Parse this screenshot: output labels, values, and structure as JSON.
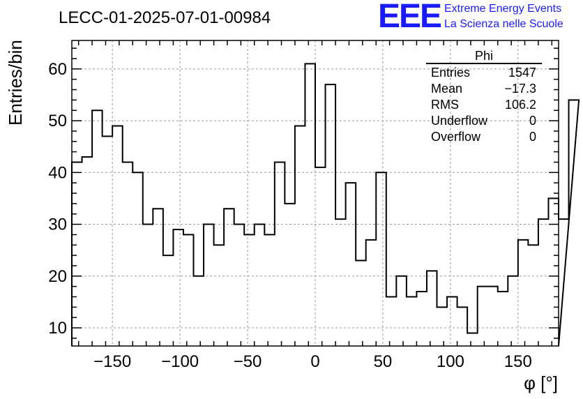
{
  "colors": {
    "line": "#000000",
    "grid": "#999999",
    "brand": "#1a1aff"
  },
  "logo": {
    "letters": "EEE",
    "line1": "Extreme Energy Events",
    "line2": "La Scienza nelle Scuole"
  },
  "chart_data": {
    "type": "histogram",
    "title": "LECC-01-2025-07-01-00984",
    "xlabel": "φ [°]",
    "ylabel": "Entries/bin",
    "xlim": [
      -180,
      180
    ],
    "ylim": [
      6.5,
      65.5
    ],
    "bin_width": 7.5,
    "grid": true,
    "xticks": [
      -150,
      -100,
      -50,
      0,
      50,
      100,
      150
    ],
    "xtick_labels": [
      "−150",
      "−100",
      "−50",
      "0",
      "50",
      "100",
      "150"
    ],
    "yticks": [
      10,
      20,
      30,
      40,
      50,
      60
    ],
    "ytick_labels": [
      "10",
      "20",
      "30",
      "40",
      "50",
      "60"
    ],
    "values": [
      42,
      43,
      52,
      47,
      49,
      42,
      40,
      30,
      33,
      24,
      29,
      28,
      20,
      30,
      26,
      33,
      30,
      28,
      30,
      28,
      42,
      34,
      49,
      61,
      41,
      57,
      31,
      38,
      23,
      27,
      40,
      16,
      20,
      16,
      17,
      21,
      14,
      16,
      14,
      9,
      18,
      18,
      17,
      20,
      27,
      26,
      31,
      35,
      31,
      54
    ],
    "stats": {
      "title": "Phi",
      "rows": [
        {
          "label": "Entries",
          "value": "1547"
        },
        {
          "label": "Mean",
          "value": "−17.3"
        },
        {
          "label": "RMS",
          "value": "106.2"
        },
        {
          "label": "Underflow",
          "value": "0"
        },
        {
          "label": "Overflow",
          "value": "0"
        }
      ]
    }
  }
}
